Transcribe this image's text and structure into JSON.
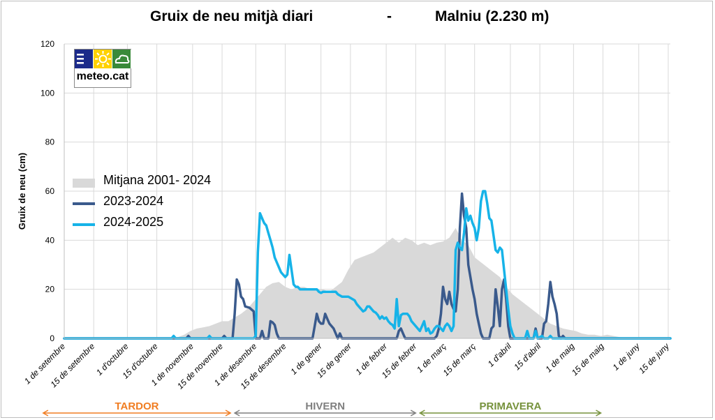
{
  "title": {
    "left": "Gruix de neu mitjà diari",
    "separator": "-",
    "right": "Malniu (2.230 m)"
  },
  "logo": {
    "text": "meteo.cat"
  },
  "colors": {
    "average": "#d9d9d9",
    "season_2023_2024": "#3a5a8c",
    "season_2024_2025": "#16b3e8",
    "tardor": "#f07d22",
    "hivern": "#7f7f7f",
    "primavera": "#76923c",
    "grid": "#d9d9d9"
  },
  "chart_data": {
    "type": "area",
    "title": "Gruix de neu mitjà diari - Malniu (2.230 m)",
    "ylabel": "Gruix de neu (cm)",
    "xlabel": "",
    "ylim": [
      0,
      120
    ],
    "yticks": [
      0,
      20,
      40,
      60,
      80,
      100,
      120
    ],
    "x_unit": "days since 1 de setembre",
    "xlim": [
      0,
      288
    ],
    "grid": true,
    "legend_position": "center-left",
    "xticks": [
      {
        "label": "1 de setembre",
        "day": 0
      },
      {
        "label": "15 de setembre",
        "day": 14
      },
      {
        "label": "1 d'octubre",
        "day": 30
      },
      {
        "label": "15 d'octubre",
        "day": 44
      },
      {
        "label": "1 de novembre",
        "day": 61
      },
      {
        "label": "15 de novembre",
        "day": 75
      },
      {
        "label": "1 de desembre",
        "day": 91
      },
      {
        "label": "15 de desembre",
        "day": 105
      },
      {
        "label": "1 de gener",
        "day": 122
      },
      {
        "label": "15 de gener",
        "day": 136
      },
      {
        "label": "1 de febrer",
        "day": 153
      },
      {
        "label": "15 de febrer",
        "day": 167
      },
      {
        "label": "1 de març",
        "day": 181
      },
      {
        "label": "15 de març",
        "day": 195
      },
      {
        "label": "1 d'abril",
        "day": 212
      },
      {
        "label": "15 d'abril",
        "day": 226
      },
      {
        "label": "1 de maig",
        "day": 242
      },
      {
        "label": "15 de maig",
        "day": 256
      },
      {
        "label": "1 de juny",
        "day": 273
      },
      {
        "label": "15 de juny",
        "day": 287
      }
    ],
    "series": [
      {
        "name": "Mitjana 2001- 2024",
        "style": "area",
        "points": [
          [
            0,
            0
          ],
          [
            50,
            0
          ],
          [
            54,
            0.5
          ],
          [
            57,
            1.5
          ],
          [
            60,
            3
          ],
          [
            63,
            4
          ],
          [
            66,
            4.5
          ],
          [
            69,
            5
          ],
          [
            72,
            6
          ],
          [
            75,
            7
          ],
          [
            78,
            7
          ],
          [
            81,
            8.5
          ],
          [
            84,
            10
          ],
          [
            87,
            12
          ],
          [
            90,
            15
          ],
          [
            93,
            18
          ],
          [
            96,
            21
          ],
          [
            99,
            22.5
          ],
          [
            102,
            23
          ],
          [
            105,
            21
          ],
          [
            108,
            20
          ],
          [
            111,
            21
          ],
          [
            114,
            21
          ],
          [
            117,
            20
          ],
          [
            120,
            20
          ],
          [
            123,
            20
          ],
          [
            126,
            19
          ],
          [
            129,
            21
          ],
          [
            132,
            23
          ],
          [
            135,
            28
          ],
          [
            138,
            32
          ],
          [
            141,
            33
          ],
          [
            144,
            34
          ],
          [
            147,
            35
          ],
          [
            150,
            37
          ],
          [
            153,
            39
          ],
          [
            156,
            41
          ],
          [
            159,
            39
          ],
          [
            162,
            41
          ],
          [
            165,
            40
          ],
          [
            168,
            38
          ],
          [
            171,
            39
          ],
          [
            174,
            38
          ],
          [
            177,
            39
          ],
          [
            180,
            39.5
          ],
          [
            183,
            41
          ],
          [
            186,
            45
          ],
          [
            189,
            40
          ],
          [
            192,
            38
          ],
          [
            195,
            33
          ],
          [
            198,
            31
          ],
          [
            201,
            29
          ],
          [
            204,
            27
          ],
          [
            207,
            25
          ],
          [
            210,
            21
          ],
          [
            213,
            18
          ],
          [
            216,
            16
          ],
          [
            219,
            14
          ],
          [
            222,
            12
          ],
          [
            225,
            10
          ],
          [
            228,
            8
          ],
          [
            231,
            6
          ],
          [
            234,
            5
          ],
          [
            237,
            4
          ],
          [
            240,
            3.5
          ],
          [
            243,
            3
          ],
          [
            246,
            2
          ],
          [
            249,
            1.5
          ],
          [
            252,
            1.5
          ],
          [
            255,
            1
          ],
          [
            258,
            1.5
          ],
          [
            261,
            1
          ],
          [
            264,
            0.5
          ],
          [
            267,
            0.3
          ],
          [
            270,
            0
          ]
        ]
      },
      {
        "name": "2023-2024",
        "style": "line",
        "points": [
          [
            0,
            0
          ],
          [
            58,
            0
          ],
          [
            59,
            1
          ],
          [
            60,
            0
          ],
          [
            75,
            0
          ],
          [
            76,
            1
          ],
          [
            77,
            0
          ],
          [
            80,
            0
          ],
          [
            81,
            10
          ],
          [
            82,
            24
          ],
          [
            83,
            22
          ],
          [
            84,
            17
          ],
          [
            85,
            16
          ],
          [
            86,
            13
          ],
          [
            88,
            12.5
          ],
          [
            90,
            11
          ],
          [
            91,
            0
          ],
          [
            93,
            0
          ],
          [
            94,
            3
          ],
          [
            95,
            0
          ],
          [
            97,
            0
          ],
          [
            98,
            7
          ],
          [
            99,
            6.5
          ],
          [
            100,
            5.5
          ],
          [
            101,
            2
          ],
          [
            102,
            0
          ],
          [
            118,
            0
          ],
          [
            119,
            5
          ],
          [
            120,
            10
          ],
          [
            121,
            7
          ],
          [
            122,
            6
          ],
          [
            123,
            6
          ],
          [
            124,
            10
          ],
          [
            125,
            8
          ],
          [
            126,
            6
          ],
          [
            127,
            5
          ],
          [
            128,
            4
          ],
          [
            129,
            2
          ],
          [
            130,
            0
          ],
          [
            131,
            2
          ],
          [
            132,
            0
          ],
          [
            158,
            0
          ],
          [
            159,
            3
          ],
          [
            160,
            4
          ],
          [
            161,
            2
          ],
          [
            162,
            0
          ],
          [
            176,
            0
          ],
          [
            177,
            1
          ],
          [
            178,
            4
          ],
          [
            179,
            10
          ],
          [
            180,
            21
          ],
          [
            181,
            16
          ],
          [
            182,
            14
          ],
          [
            183,
            19
          ],
          [
            184,
            14
          ],
          [
            185,
            12
          ],
          [
            186,
            11
          ],
          [
            187,
            20
          ],
          [
            188,
            45
          ],
          [
            189,
            59
          ],
          [
            190,
            50
          ],
          [
            191,
            45
          ],
          [
            192,
            30
          ],
          [
            193,
            25
          ],
          [
            194,
            20
          ],
          [
            195,
            16
          ],
          [
            196,
            10
          ],
          [
            197,
            6
          ],
          [
            198,
            2
          ],
          [
            199,
            0
          ],
          [
            202,
            0
          ],
          [
            203,
            4
          ],
          [
            204,
            5
          ],
          [
            205,
            20
          ],
          [
            206,
            13
          ],
          [
            207,
            5
          ],
          [
            208,
            20
          ],
          [
            209,
            24
          ],
          [
            210,
            16
          ],
          [
            211,
            5
          ],
          [
            212,
            0
          ],
          [
            223,
            0
          ],
          [
            224,
            4
          ],
          [
            225,
            0
          ],
          [
            227,
            0
          ],
          [
            228,
            6
          ],
          [
            229,
            7
          ],
          [
            230,
            14
          ],
          [
            231,
            23
          ],
          [
            232,
            17
          ],
          [
            233,
            14
          ],
          [
            234,
            10
          ],
          [
            235,
            1
          ],
          [
            236,
            0
          ],
          [
            237,
            1
          ],
          [
            238,
            0
          ],
          [
            288,
            0
          ]
        ]
      },
      {
        "name": "2024-2025",
        "style": "line",
        "points": [
          [
            0,
            0
          ],
          [
            51,
            0
          ],
          [
            52,
            1
          ],
          [
            53,
            0
          ],
          [
            68,
            0
          ],
          [
            69,
            1
          ],
          [
            70,
            0
          ],
          [
            90,
            0
          ],
          [
            91,
            1
          ],
          [
            92,
            35
          ],
          [
            93,
            51
          ],
          [
            94,
            49
          ],
          [
            95,
            47
          ],
          [
            96,
            46
          ],
          [
            97,
            43
          ],
          [
            98,
            40
          ],
          [
            99,
            37
          ],
          [
            100,
            33
          ],
          [
            101,
            31
          ],
          [
            102,
            29
          ],
          [
            103,
            27
          ],
          [
            104,
            26
          ],
          [
            105,
            25
          ],
          [
            106,
            26
          ],
          [
            107,
            34
          ],
          [
            108,
            28
          ],
          [
            109,
            22
          ],
          [
            110,
            21
          ],
          [
            111,
            21
          ],
          [
            112,
            20
          ],
          [
            120,
            20
          ],
          [
            121,
            19
          ],
          [
            122,
            18.5
          ],
          [
            123,
            19
          ],
          [
            127,
            19
          ],
          [
            129,
            19
          ],
          [
            130,
            18
          ],
          [
            131,
            17.5
          ],
          [
            132,
            17
          ],
          [
            135,
            17
          ],
          [
            137,
            16
          ],
          [
            138,
            15.5
          ],
          [
            139,
            14
          ],
          [
            140,
            13
          ],
          [
            141,
            12
          ],
          [
            142,
            11
          ],
          [
            143,
            11.5
          ],
          [
            144,
            13
          ],
          [
            145,
            13
          ],
          [
            146,
            12
          ],
          [
            147,
            11
          ],
          [
            148,
            10.5
          ],
          [
            149,
            9.5
          ],
          [
            150,
            8
          ],
          [
            151,
            9
          ],
          [
            152,
            8
          ],
          [
            153,
            8.5
          ],
          [
            154,
            7
          ],
          [
            155,
            6
          ],
          [
            156,
            5.5
          ],
          [
            157,
            4
          ],
          [
            158,
            16
          ],
          [
            159,
            5
          ],
          [
            160,
            9.5
          ],
          [
            161,
            10
          ],
          [
            163,
            10
          ],
          [
            164,
            9
          ],
          [
            165,
            7
          ],
          [
            166,
            6
          ],
          [
            167,
            5
          ],
          [
            168,
            4
          ],
          [
            169,
            3
          ],
          [
            170,
            5
          ],
          [
            171,
            7
          ],
          [
            172,
            3
          ],
          [
            173,
            4
          ],
          [
            174,
            2
          ],
          [
            175,
            2.5
          ],
          [
            176,
            4
          ],
          [
            177,
            5
          ],
          [
            178,
            5
          ],
          [
            179,
            4
          ],
          [
            180,
            3
          ],
          [
            181,
            5
          ],
          [
            182,
            6
          ],
          [
            183,
            5
          ],
          [
            184,
            3
          ],
          [
            185,
            5
          ],
          [
            186,
            36
          ],
          [
            187,
            39
          ],
          [
            188,
            37
          ],
          [
            189,
            36
          ],
          [
            190,
            43
          ],
          [
            191,
            53
          ],
          [
            192,
            48
          ],
          [
            193,
            50
          ],
          [
            194,
            47
          ],
          [
            195,
            45
          ],
          [
            196,
            40
          ],
          [
            197,
            45
          ],
          [
            198,
            56
          ],
          [
            199,
            60
          ],
          [
            200,
            60
          ],
          [
            201,
            55
          ],
          [
            202,
            49
          ],
          [
            203,
            48
          ],
          [
            204,
            42
          ],
          [
            205,
            36
          ],
          [
            206,
            35
          ],
          [
            207,
            37
          ],
          [
            208,
            36
          ],
          [
            209,
            28
          ],
          [
            210,
            20
          ],
          [
            211,
            12
          ],
          [
            212,
            5
          ],
          [
            213,
            2
          ],
          [
            214,
            0
          ],
          [
            219,
            0
          ],
          [
            220,
            3
          ],
          [
            221,
            0
          ],
          [
            223,
            0
          ],
          [
            224,
            3
          ],
          [
            225,
            0
          ],
          [
            227,
            1
          ],
          [
            228,
            0
          ],
          [
            230,
            0
          ],
          [
            231,
            1
          ],
          [
            232,
            0
          ],
          [
            288,
            0
          ]
        ]
      }
    ],
    "seasons": [
      {
        "label": "TARDOR",
        "from_day": -10,
        "to_day": 79
      },
      {
        "label": "HIVERN",
        "from_day": 81,
        "to_day": 167
      },
      {
        "label": "PRIMAVERA",
        "from_day": 169,
        "to_day": 255
      }
    ]
  },
  "legend": {
    "items": [
      "Mitjana  2001- 2024",
      "2023-2024",
      "2024-2025"
    ]
  }
}
